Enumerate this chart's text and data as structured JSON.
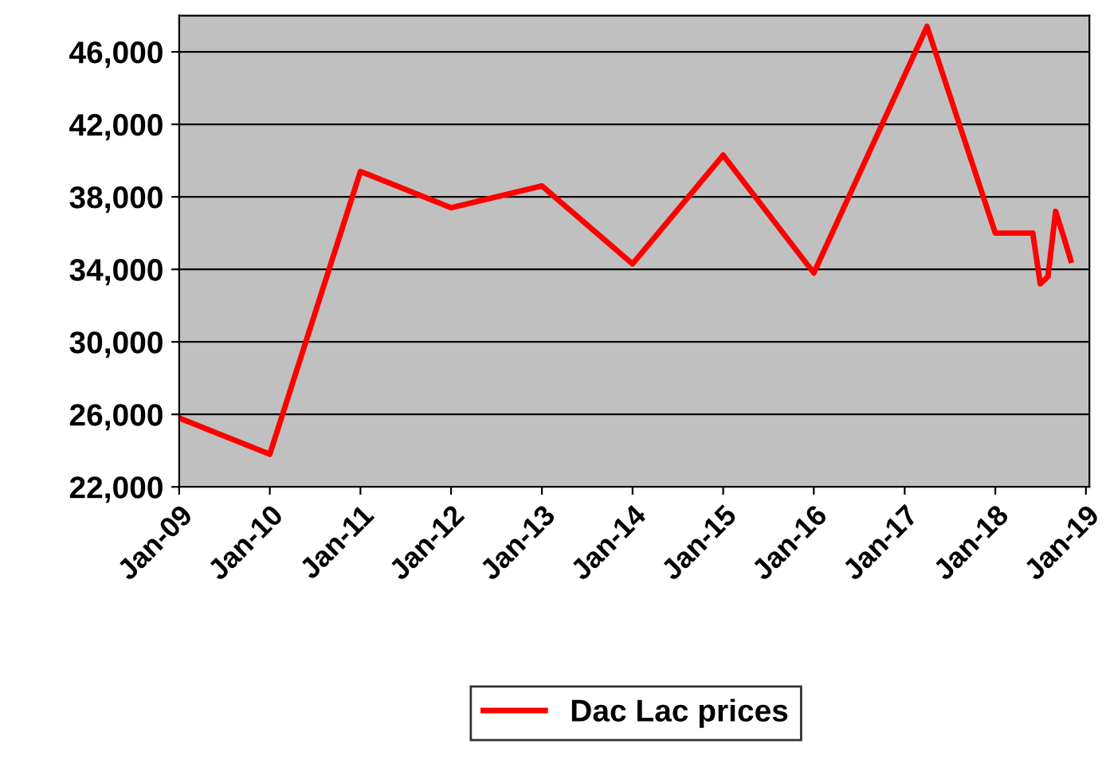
{
  "chart_data": {
    "type": "line",
    "x": [
      "2009-01",
      "2010-01",
      "2011-01",
      "2012-01",
      "2013-01",
      "2014-01",
      "2015-01",
      "2016-01",
      "2017-04",
      "2018-01",
      "2018-06",
      "2018-07",
      "2018-08",
      "2018-09",
      "2018-10",
      "2018-11"
    ],
    "series": [
      {
        "name": "Dac Lac prices",
        "color": "#ff0000",
        "values": [
          25800,
          23800,
          39400,
          37400,
          38600,
          34300,
          40300,
          33800,
          47400,
          36000,
          36000,
          33200,
          33600,
          37200,
          35900,
          34500
        ]
      }
    ],
    "xlim": [
      "2009-01",
      "2019-01-15"
    ],
    "xticks": [
      {
        "value": "2009-01",
        "label": "Jan-09"
      },
      {
        "value": "2010-01",
        "label": "Jan-10"
      },
      {
        "value": "2011-01",
        "label": "Jan-11"
      },
      {
        "value": "2012-01",
        "label": "Jan-12"
      },
      {
        "value": "2013-01",
        "label": "Jan-13"
      },
      {
        "value": "2014-01",
        "label": "Jan-14"
      },
      {
        "value": "2015-01",
        "label": "Jan-15"
      },
      {
        "value": "2016-01",
        "label": "Jan-16"
      },
      {
        "value": "2017-01",
        "label": "Jan-17"
      },
      {
        "value": "2018-01",
        "label": "Jan-18"
      },
      {
        "value": "2019-01",
        "label": "Jan-19"
      }
    ],
    "ylim": [
      22000,
      48000
    ],
    "yticks": [
      {
        "value": 22000,
        "label": "22,000"
      },
      {
        "value": 26000,
        "label": "26,000"
      },
      {
        "value": 30000,
        "label": "30,000"
      },
      {
        "value": 34000,
        "label": "34,000"
      },
      {
        "value": 38000,
        "label": "38,000"
      },
      {
        "value": 42000,
        "label": "42,000"
      },
      {
        "value": 46000,
        "label": "46,000"
      }
    ],
    "grid": "y",
    "legend": "bottom",
    "marker": "none",
    "line_style": "solid"
  }
}
